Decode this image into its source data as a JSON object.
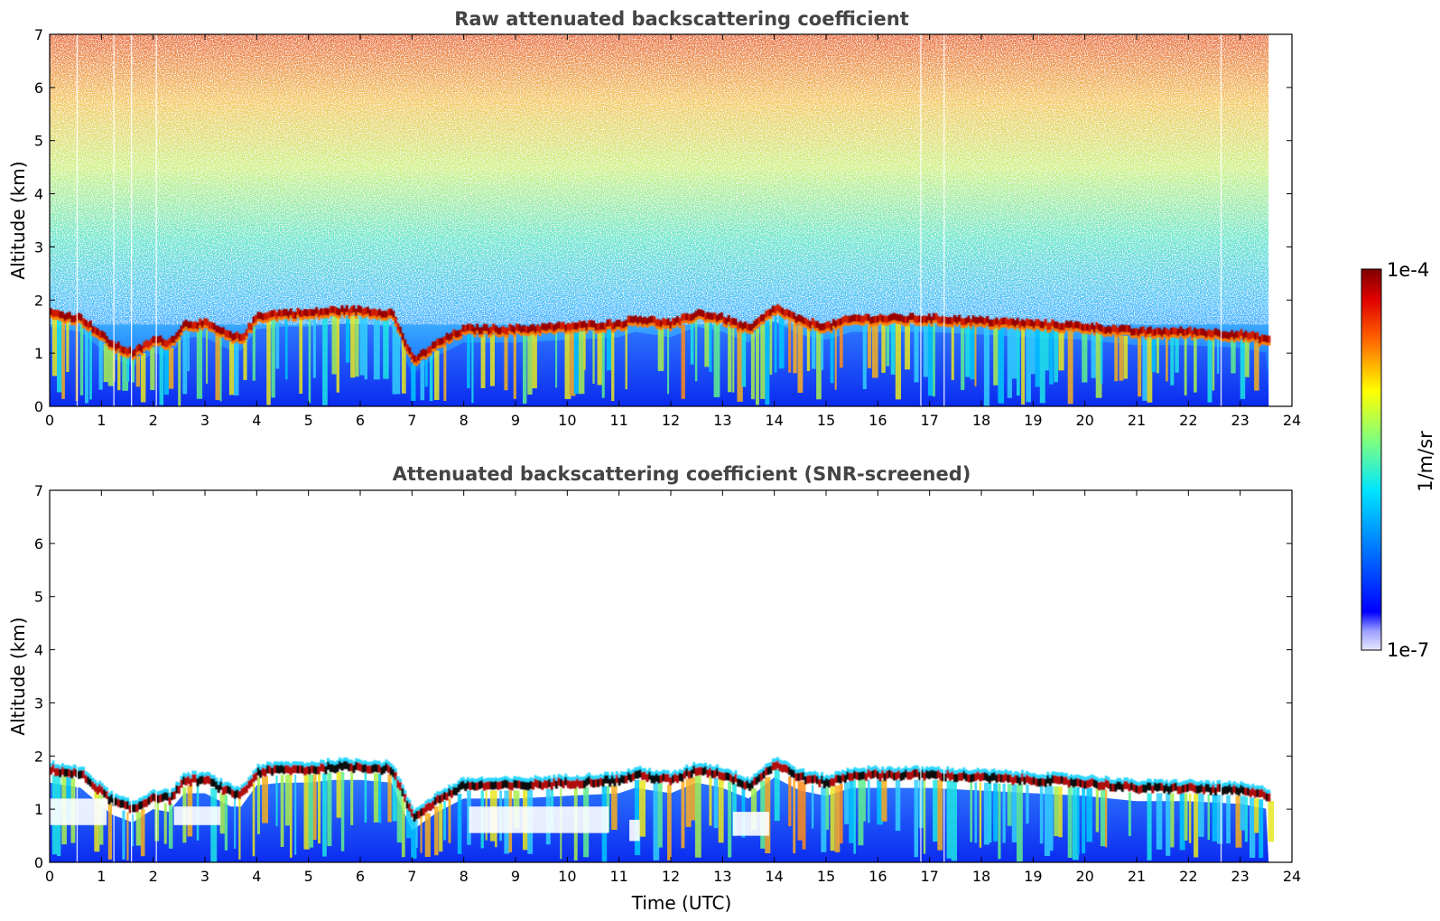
{
  "chart_data": [
    {
      "type": "heatmap",
      "title": "Raw attenuated backscattering coefficient",
      "xlabel": "",
      "ylabel": "Altitude (km)",
      "xlim": [
        0,
        24
      ],
      "ylim": [
        0,
        7
      ],
      "x_ticks": [
        "0",
        "1",
        "2",
        "3",
        "4",
        "5",
        "6",
        "7",
        "8",
        "9",
        "10",
        "11",
        "12",
        "13",
        "14",
        "15",
        "16",
        "17",
        "18",
        "19",
        "20",
        "21",
        "22",
        "23",
        "24"
      ],
      "y_ticks": [
        "0",
        "1",
        "2",
        "3",
        "4",
        "5",
        "6",
        "7"
      ],
      "data_end_hour": 23.55,
      "cloud_base_km": [
        [
          0.0,
          1.65
        ],
        [
          0.3,
          1.6
        ],
        [
          0.6,
          1.55
        ],
        [
          1.2,
          1.05
        ],
        [
          1.6,
          0.9
        ],
        [
          2.0,
          1.15
        ],
        [
          2.3,
          1.1
        ],
        [
          2.6,
          1.45
        ],
        [
          3.0,
          1.45
        ],
        [
          3.5,
          1.2
        ],
        [
          3.7,
          1.2
        ],
        [
          4.0,
          1.6
        ],
        [
          4.5,
          1.65
        ],
        [
          5.0,
          1.65
        ],
        [
          5.5,
          1.7
        ],
        [
          6.0,
          1.7
        ],
        [
          6.6,
          1.65
        ],
        [
          7.0,
          0.75
        ],
        [
          7.5,
          1.1
        ],
        [
          8.0,
          1.35
        ],
        [
          9.0,
          1.35
        ],
        [
          10.0,
          1.4
        ],
        [
          11.0,
          1.45
        ],
        [
          11.3,
          1.55
        ],
        [
          12.0,
          1.45
        ],
        [
          12.5,
          1.65
        ],
        [
          13.0,
          1.55
        ],
        [
          13.5,
          1.35
        ],
        [
          14.0,
          1.75
        ],
        [
          14.5,
          1.5
        ],
        [
          15.0,
          1.4
        ],
        [
          15.5,
          1.55
        ],
        [
          16.0,
          1.55
        ],
        [
          17.0,
          1.55
        ],
        [
          18.0,
          1.5
        ],
        [
          19.0,
          1.45
        ],
        [
          20.0,
          1.4
        ],
        [
          21.0,
          1.3
        ],
        [
          22.0,
          1.3
        ],
        [
          23.0,
          1.25
        ],
        [
          23.55,
          1.15
        ]
      ]
    },
    {
      "type": "heatmap",
      "title": "Attenuated backscattering coefficient (SNR-screened)",
      "xlabel": "Time (UTC)",
      "ylabel": "Altitude (km)",
      "xlim": [
        0,
        24
      ],
      "ylim": [
        0,
        7
      ],
      "x_ticks": [
        "0",
        "1",
        "2",
        "3",
        "4",
        "5",
        "6",
        "7",
        "8",
        "9",
        "10",
        "11",
        "12",
        "13",
        "14",
        "15",
        "16",
        "17",
        "18",
        "19",
        "20",
        "21",
        "22",
        "23",
        "24"
      ],
      "y_ticks": [
        "0",
        "1",
        "2",
        "3",
        "4",
        "5",
        "6",
        "7"
      ],
      "data_end_hour": 23.55
    }
  ],
  "colorbar": {
    "label": "1/m/sr",
    "max_label": "1e-4",
    "min_label": "1e-7",
    "scale": "log",
    "colormap": "jet",
    "stops": [
      "#00007f",
      "#0000ff",
      "#007fff",
      "#00ffff",
      "#7fff7f",
      "#ffff00",
      "#ff7f00",
      "#ff0000",
      "#7f0000"
    ]
  }
}
